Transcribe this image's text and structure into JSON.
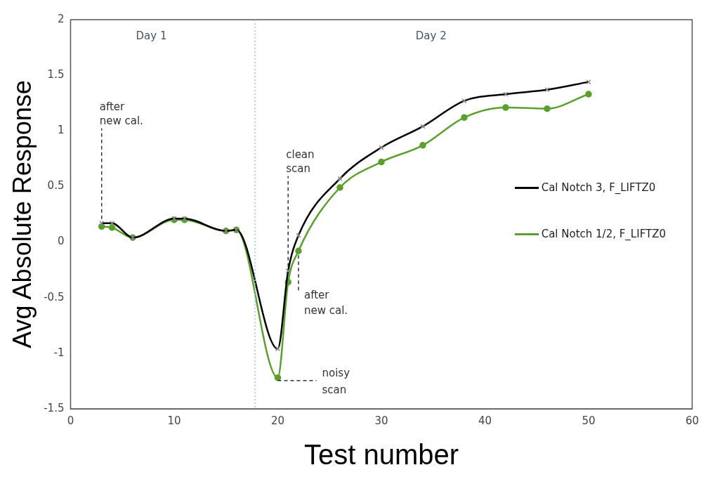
{
  "chart_data": {
    "type": "line",
    "xlabel": "Test number",
    "ylabel": "Avg Absolute Response",
    "xlim": [
      0,
      60
    ],
    "xticks": [
      0,
      10,
      20,
      30,
      40,
      50,
      60
    ],
    "ylim": [
      -1.5,
      2
    ],
    "yticks": [
      -1.5,
      -1,
      -0.5,
      0,
      0.5,
      1,
      1.5,
      2
    ],
    "grid": false,
    "legend": "right",
    "series": [
      {
        "name": "Cal Notch 3, F_LIFTZ0",
        "color": "#000000",
        "marker": "cross",
        "x": [
          3,
          4,
          6,
          10,
          11,
          15,
          16,
          20,
          21,
          22,
          26,
          30,
          34,
          38,
          42,
          46,
          50
        ],
        "values": [
          0.17,
          0.17,
          0.04,
          0.21,
          0.21,
          0.1,
          0.11,
          -0.96,
          -0.26,
          0.06,
          0.57,
          0.85,
          1.04,
          1.27,
          1.33,
          1.37,
          1.44
        ]
      },
      {
        "name": "Cal Notch 1/2, F_LIFTZ0",
        "color": "#5aa02c",
        "marker": "circle",
        "x": [
          3,
          4,
          6,
          10,
          11,
          15,
          16,
          20,
          21,
          22,
          26,
          30,
          34,
          38,
          42,
          46,
          50
        ],
        "values": [
          0.14,
          0.13,
          0.04,
          0.2,
          0.2,
          0.1,
          0.11,
          -1.22,
          -0.36,
          -0.08,
          0.49,
          0.72,
          0.87,
          1.12,
          1.21,
          1.2,
          1.33
        ]
      }
    ],
    "ref_lines": [
      {
        "axis": "x",
        "value": 17.8,
        "color": "#9dc3e6",
        "line_style": "dotted"
      }
    ],
    "annotations": [
      "Day 1",
      "Day 2",
      {
        "text": "after new cal.",
        "x": 3,
        "y": 0.17
      },
      {
        "text": "clean scan",
        "x": 21,
        "y": -0.26
      },
      {
        "text": "after new cal.",
        "x": 22,
        "y": -0.08
      },
      {
        "text": "noisy scan",
        "x": 20,
        "y": -1.22
      }
    ]
  }
}
